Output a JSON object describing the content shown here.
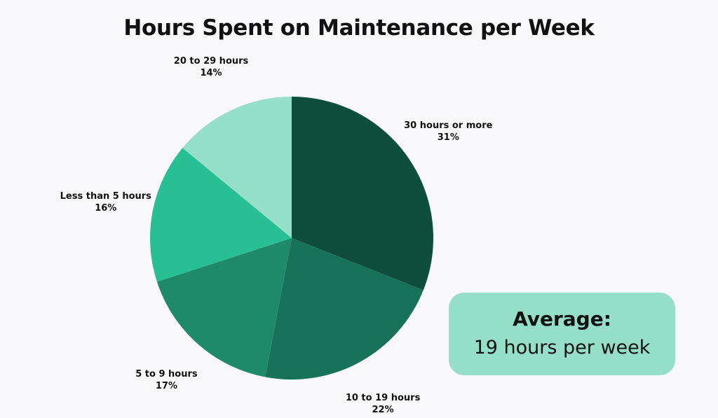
{
  "chart_data": {
    "type": "pie",
    "title": "Hours Spent on Maintenance per Week",
    "slices": [
      {
        "label": "30 hours or more",
        "value": 31,
        "value_label": "31%",
        "color": "#0f4d3c"
      },
      {
        "label": "10 to 19 hours",
        "value": 22,
        "value_label": "22%",
        "color": "#18725a"
      },
      {
        "label": "5 to 9 hours",
        "value": 17,
        "value_label": "17%",
        "color": "#1e8a69"
      },
      {
        "label": "Less than 5 hours",
        "value": 16,
        "value_label": "16%",
        "color": "#27bf93"
      },
      {
        "label": "20 to 29 hours",
        "value": 14,
        "value_label": "14%",
        "color": "#95dfc8"
      }
    ]
  },
  "summary": {
    "label": "Average:",
    "value": "19 hours per week",
    "box_color": "#95dfc8"
  }
}
